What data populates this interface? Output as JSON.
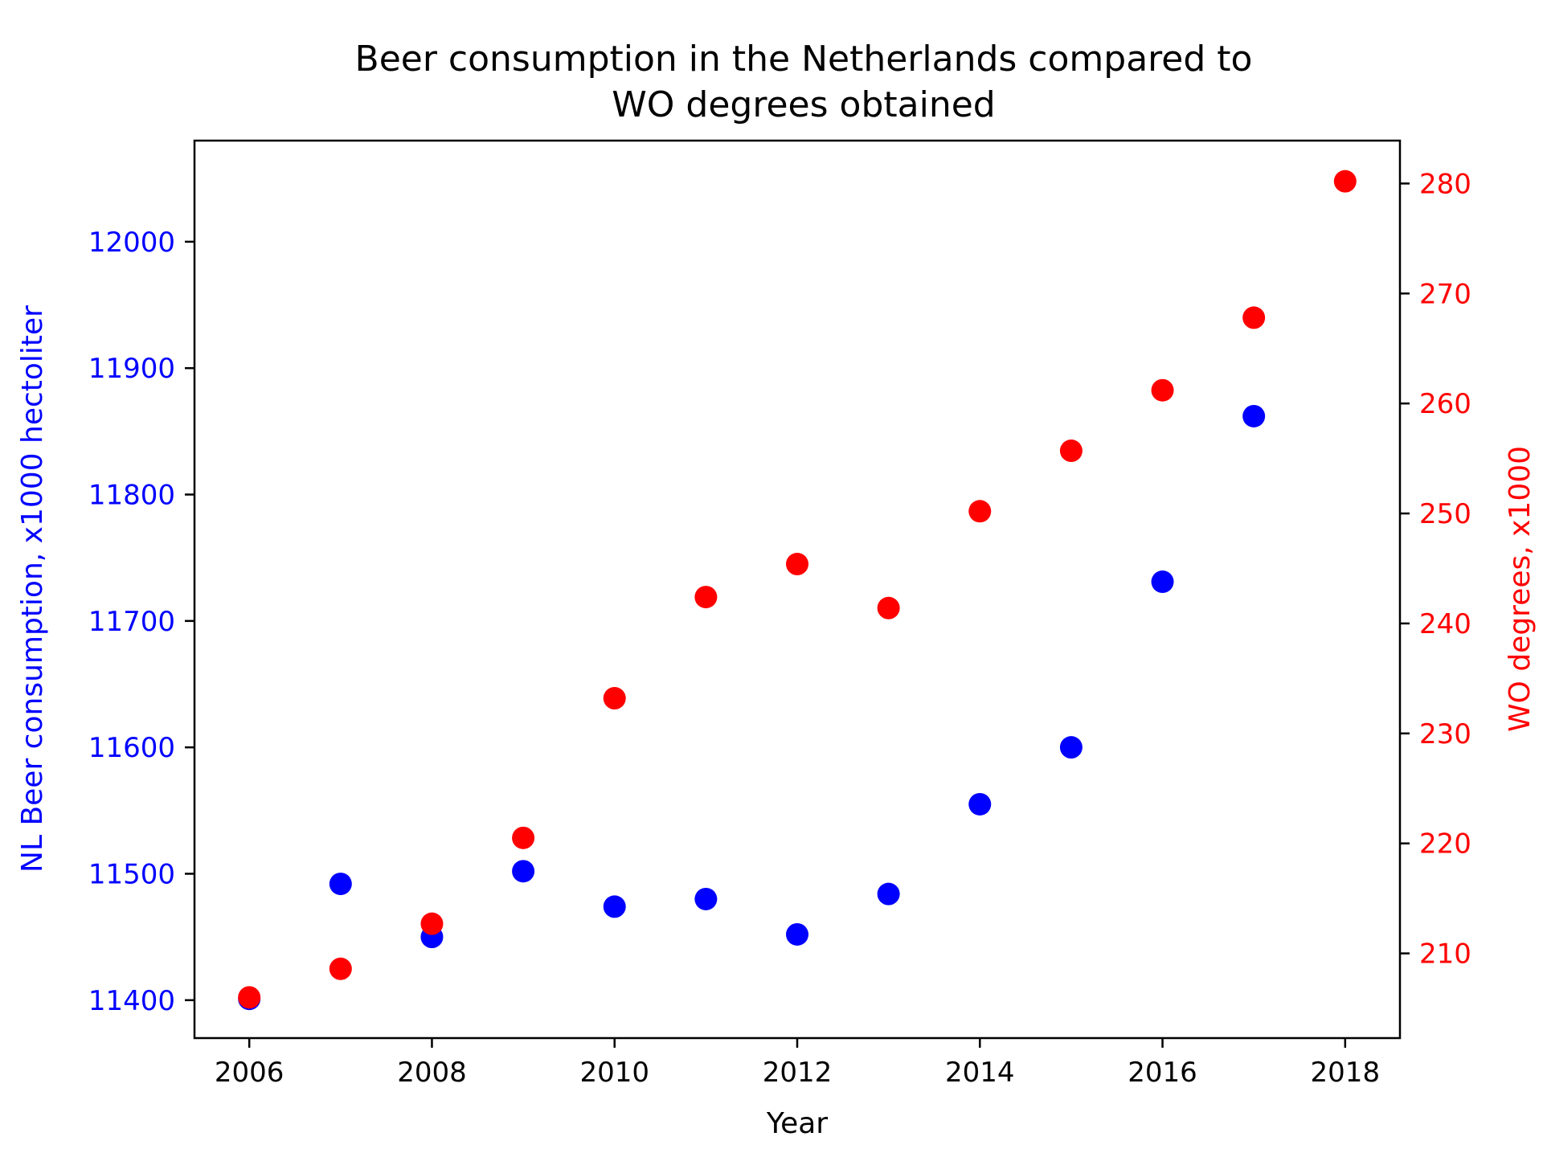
{
  "chart_data": {
    "type": "scatter",
    "title_line1": "Beer consumption in the Netherlands compared to",
    "title_line2": "WO degrees obtained",
    "xlabel": "Year",
    "ylabel_left": "NL Beer consumption, x1000 hectoliter",
    "ylabel_right": "WO degrees, x1000",
    "x": [
      2006,
      2007,
      2008,
      2009,
      2010,
      2011,
      2012,
      2013,
      2014,
      2015,
      2016,
      2017,
      2018
    ],
    "xlim": [
      2005.4,
      2018.6
    ],
    "xticks": [
      2006,
      2008,
      2010,
      2012,
      2014,
      2016,
      2018
    ],
    "grid": false,
    "legend": "none",
    "series": [
      {
        "axis": "left",
        "color": "#0000ff",
        "values": [
          11401,
          11492,
          11450,
          11502,
          11474,
          11480,
          11452,
          11484,
          11555,
          11600,
          11731,
          11862,
          null
        ],
        "ylim": [
          11370,
          12080
        ],
        "yticks": [
          11400,
          11500,
          11600,
          11700,
          11800,
          11900,
          12000
        ]
      },
      {
        "axis": "right",
        "color": "#ff0000",
        "values": [
          206.0,
          208.6,
          212.7,
          220.5,
          233.2,
          242.4,
          245.4,
          241.4,
          250.2,
          255.7,
          261.2,
          267.8,
          280.2
        ],
        "ylim": [
          202.3,
          283.9
        ],
        "yticks": [
          210,
          220,
          230,
          240,
          250,
          260,
          270,
          280
        ]
      }
    ]
  }
}
